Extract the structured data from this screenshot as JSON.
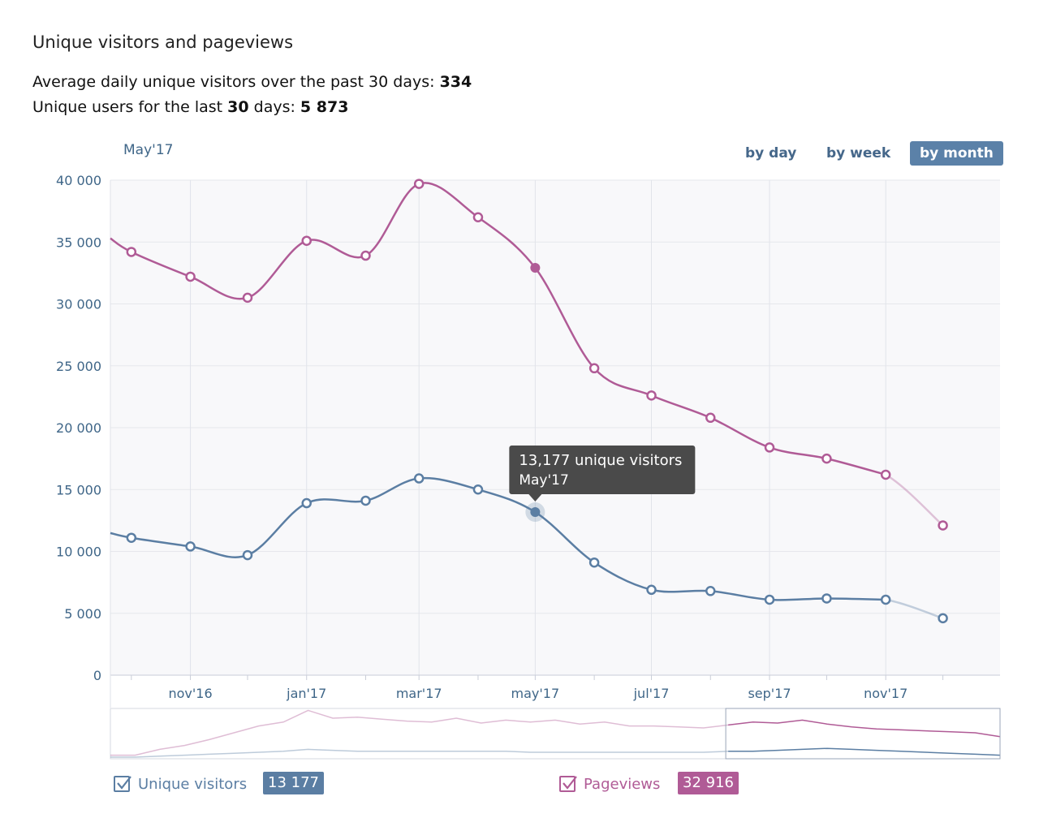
{
  "header": {
    "title": "Unique visitors and pageviews",
    "avg_prefix": "Average daily unique visitors over the past 30 days: ",
    "avg_value": "334",
    "users_prefix": "Unique users for the last ",
    "users_days": "30",
    "users_middle": " days: ",
    "users_value": "5 873"
  },
  "period_label": "May'17",
  "buttons": {
    "day": "by day",
    "week": "by week",
    "month": "by month",
    "active": "month"
  },
  "colors": {
    "visitors": "#5b7ea3",
    "pageviews": "#b05b96",
    "tooltip_bg": "#4a4a4a",
    "button_active": "#5b81a8"
  },
  "tooltip": {
    "line1": "13,177 unique visitors",
    "line2": "May'17"
  },
  "legend": {
    "visitors": {
      "label": "Unique visitors",
      "value": "13 177",
      "checked": true
    },
    "pageviews": {
      "label": "Pageviews",
      "value": "32 916",
      "checked": true
    }
  },
  "chart_data": {
    "type": "line",
    "x": [
      "2016-10-01",
      "2016-11-01",
      "2016-12-01",
      "2017-01-01",
      "2017-02-01",
      "2017-03-01",
      "2017-04-01",
      "2017-05-01",
      "2017-06-01",
      "2017-07-01",
      "2017-08-01",
      "2017-09-01",
      "2017-10-01",
      "2017-11-01",
      "2017-12-01"
    ],
    "series": [
      {
        "name": "Pageviews",
        "values": [
          34200,
          32200,
          30500,
          35100,
          33900,
          39700,
          37000,
          32916,
          24800,
          22600,
          20800,
          18400,
          17500,
          16200,
          12100
        ]
      },
      {
        "name": "Unique visitors",
        "values": [
          11100,
          10400,
          9700,
          13900,
          14100,
          15900,
          15000,
          13177,
          9100,
          6900,
          6800,
          6100,
          6200,
          6100,
          4600
        ]
      }
    ],
    "ylim": [
      0,
      40000
    ],
    "yticks": [
      "0",
      "5 000",
      "10 000",
      "15 000",
      "20 000",
      "25 000",
      "30 000",
      "35 000",
      "40 000"
    ],
    "xtick_labels": [
      "nov'16",
      "jan'17",
      "mar'17",
      "may'17",
      "jul'17",
      "sep'17",
      "nov'17"
    ],
    "highlight": "2017-05-01",
    "grid": true,
    "navigator": {
      "pageviews": [
        2,
        2,
        8,
        12,
        18,
        25,
        32,
        36,
        48,
        40,
        41,
        39,
        37,
        36,
        40,
        35,
        38,
        36,
        38,
        34,
        36,
        32,
        32,
        31,
        30,
        33,
        36,
        35,
        38,
        34,
        31,
        29,
        28,
        27,
        26,
        25,
        21
      ],
      "visitors": [
        0,
        0,
        1,
        2,
        3,
        4,
        5,
        6,
        8,
        7,
        6,
        6,
        6,
        6,
        6,
        6,
        6,
        5,
        5,
        5,
        5,
        5,
        5,
        5,
        5,
        6,
        6,
        7,
        8,
        9,
        8,
        7,
        6,
        5,
        4,
        3,
        2
      ]
    }
  }
}
